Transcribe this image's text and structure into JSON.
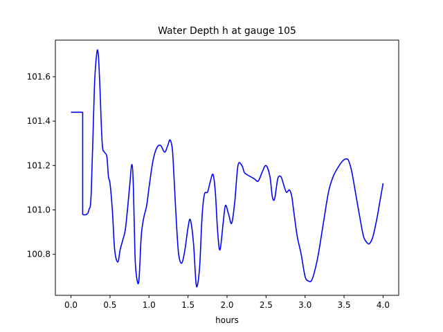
{
  "chart_data": {
    "type": "line",
    "title": "Water Depth h at gauge 105",
    "xlabel": "hours",
    "ylabel": "",
    "xlim": [
      -0.2,
      4.2
    ],
    "ylim": [
      100.615,
      101.765
    ],
    "xticks": [
      0.0,
      0.5,
      1.0,
      1.5,
      2.0,
      2.5,
      3.0,
      3.5,
      4.0
    ],
    "xtick_labels": [
      "0.0",
      "0.5",
      "1.0",
      "1.5",
      "2.0",
      "2.5",
      "3.0",
      "3.5",
      "4.0"
    ],
    "yticks": [
      100.8,
      101.0,
      101.2,
      101.4,
      101.6
    ],
    "ytick_labels": [
      "100.8",
      "101.0",
      "101.2",
      "101.4",
      "101.6"
    ],
    "grid": false,
    "series": [
      {
        "color": "#0000ff",
        "x": [
          0.0,
          0.15,
          0.15,
          0.16,
          0.2,
          0.23,
          0.26,
          0.3,
          0.33,
          0.35,
          0.37,
          0.4,
          0.43,
          0.46,
          0.48,
          0.5,
          0.53,
          0.56,
          0.6,
          0.63,
          0.66,
          0.7,
          0.75,
          0.78,
          0.8,
          0.82,
          0.84,
          0.87,
          0.9,
          0.93,
          0.97,
          1.0,
          1.05,
          1.1,
          1.15,
          1.2,
          1.24,
          1.27,
          1.3,
          1.32,
          1.35,
          1.38,
          1.42,
          1.46,
          1.5,
          1.53,
          1.57,
          1.6,
          1.62,
          1.65,
          1.68,
          1.71,
          1.75,
          1.78,
          1.82,
          1.85,
          1.88,
          1.91,
          1.95,
          1.98,
          2.02,
          2.06,
          2.1,
          2.14,
          2.19,
          2.22,
          2.25,
          2.3,
          2.35,
          2.4,
          2.45,
          2.5,
          2.55,
          2.58,
          2.61,
          2.65,
          2.69,
          2.72,
          2.76,
          2.8,
          2.83,
          2.86,
          2.9,
          2.95,
          3.0,
          3.04,
          3.08,
          3.12,
          3.17,
          3.23,
          3.3,
          3.36,
          3.42,
          3.48,
          3.53,
          3.56,
          3.6,
          3.65,
          3.7,
          3.75,
          3.8,
          3.83,
          3.87,
          3.92,
          3.96,
          4.0
        ],
        "y": [
          101.44,
          101.44,
          100.98,
          100.978,
          100.98,
          101.0,
          101.08,
          101.55,
          101.705,
          101.7,
          101.56,
          101.3,
          101.26,
          101.24,
          101.15,
          101.12,
          101.0,
          100.82,
          100.765,
          100.82,
          100.86,
          100.92,
          101.1,
          101.205,
          101.1,
          100.8,
          100.7,
          100.68,
          100.88,
          100.96,
          101.02,
          101.1,
          101.22,
          101.28,
          101.29,
          101.26,
          101.29,
          101.315,
          101.27,
          101.15,
          100.95,
          100.8,
          100.76,
          100.82,
          100.92,
          100.955,
          100.85,
          100.68,
          100.66,
          100.75,
          100.97,
          101.07,
          101.08,
          101.12,
          101.16,
          101.08,
          100.9,
          100.82,
          100.94,
          101.02,
          100.98,
          100.94,
          101.04,
          101.2,
          101.2,
          101.17,
          101.16,
          101.15,
          101.14,
          101.13,
          101.17,
          101.2,
          101.15,
          101.06,
          101.05,
          101.14,
          101.15,
          101.12,
          101.08,
          101.09,
          101.06,
          100.98,
          100.88,
          100.8,
          100.7,
          100.68,
          100.68,
          100.72,
          100.8,
          100.93,
          101.08,
          101.15,
          101.19,
          101.22,
          101.23,
          101.22,
          101.17,
          101.07,
          100.97,
          100.88,
          100.85,
          100.85,
          100.88,
          100.96,
          101.04,
          101.12
        ]
      }
    ]
  }
}
